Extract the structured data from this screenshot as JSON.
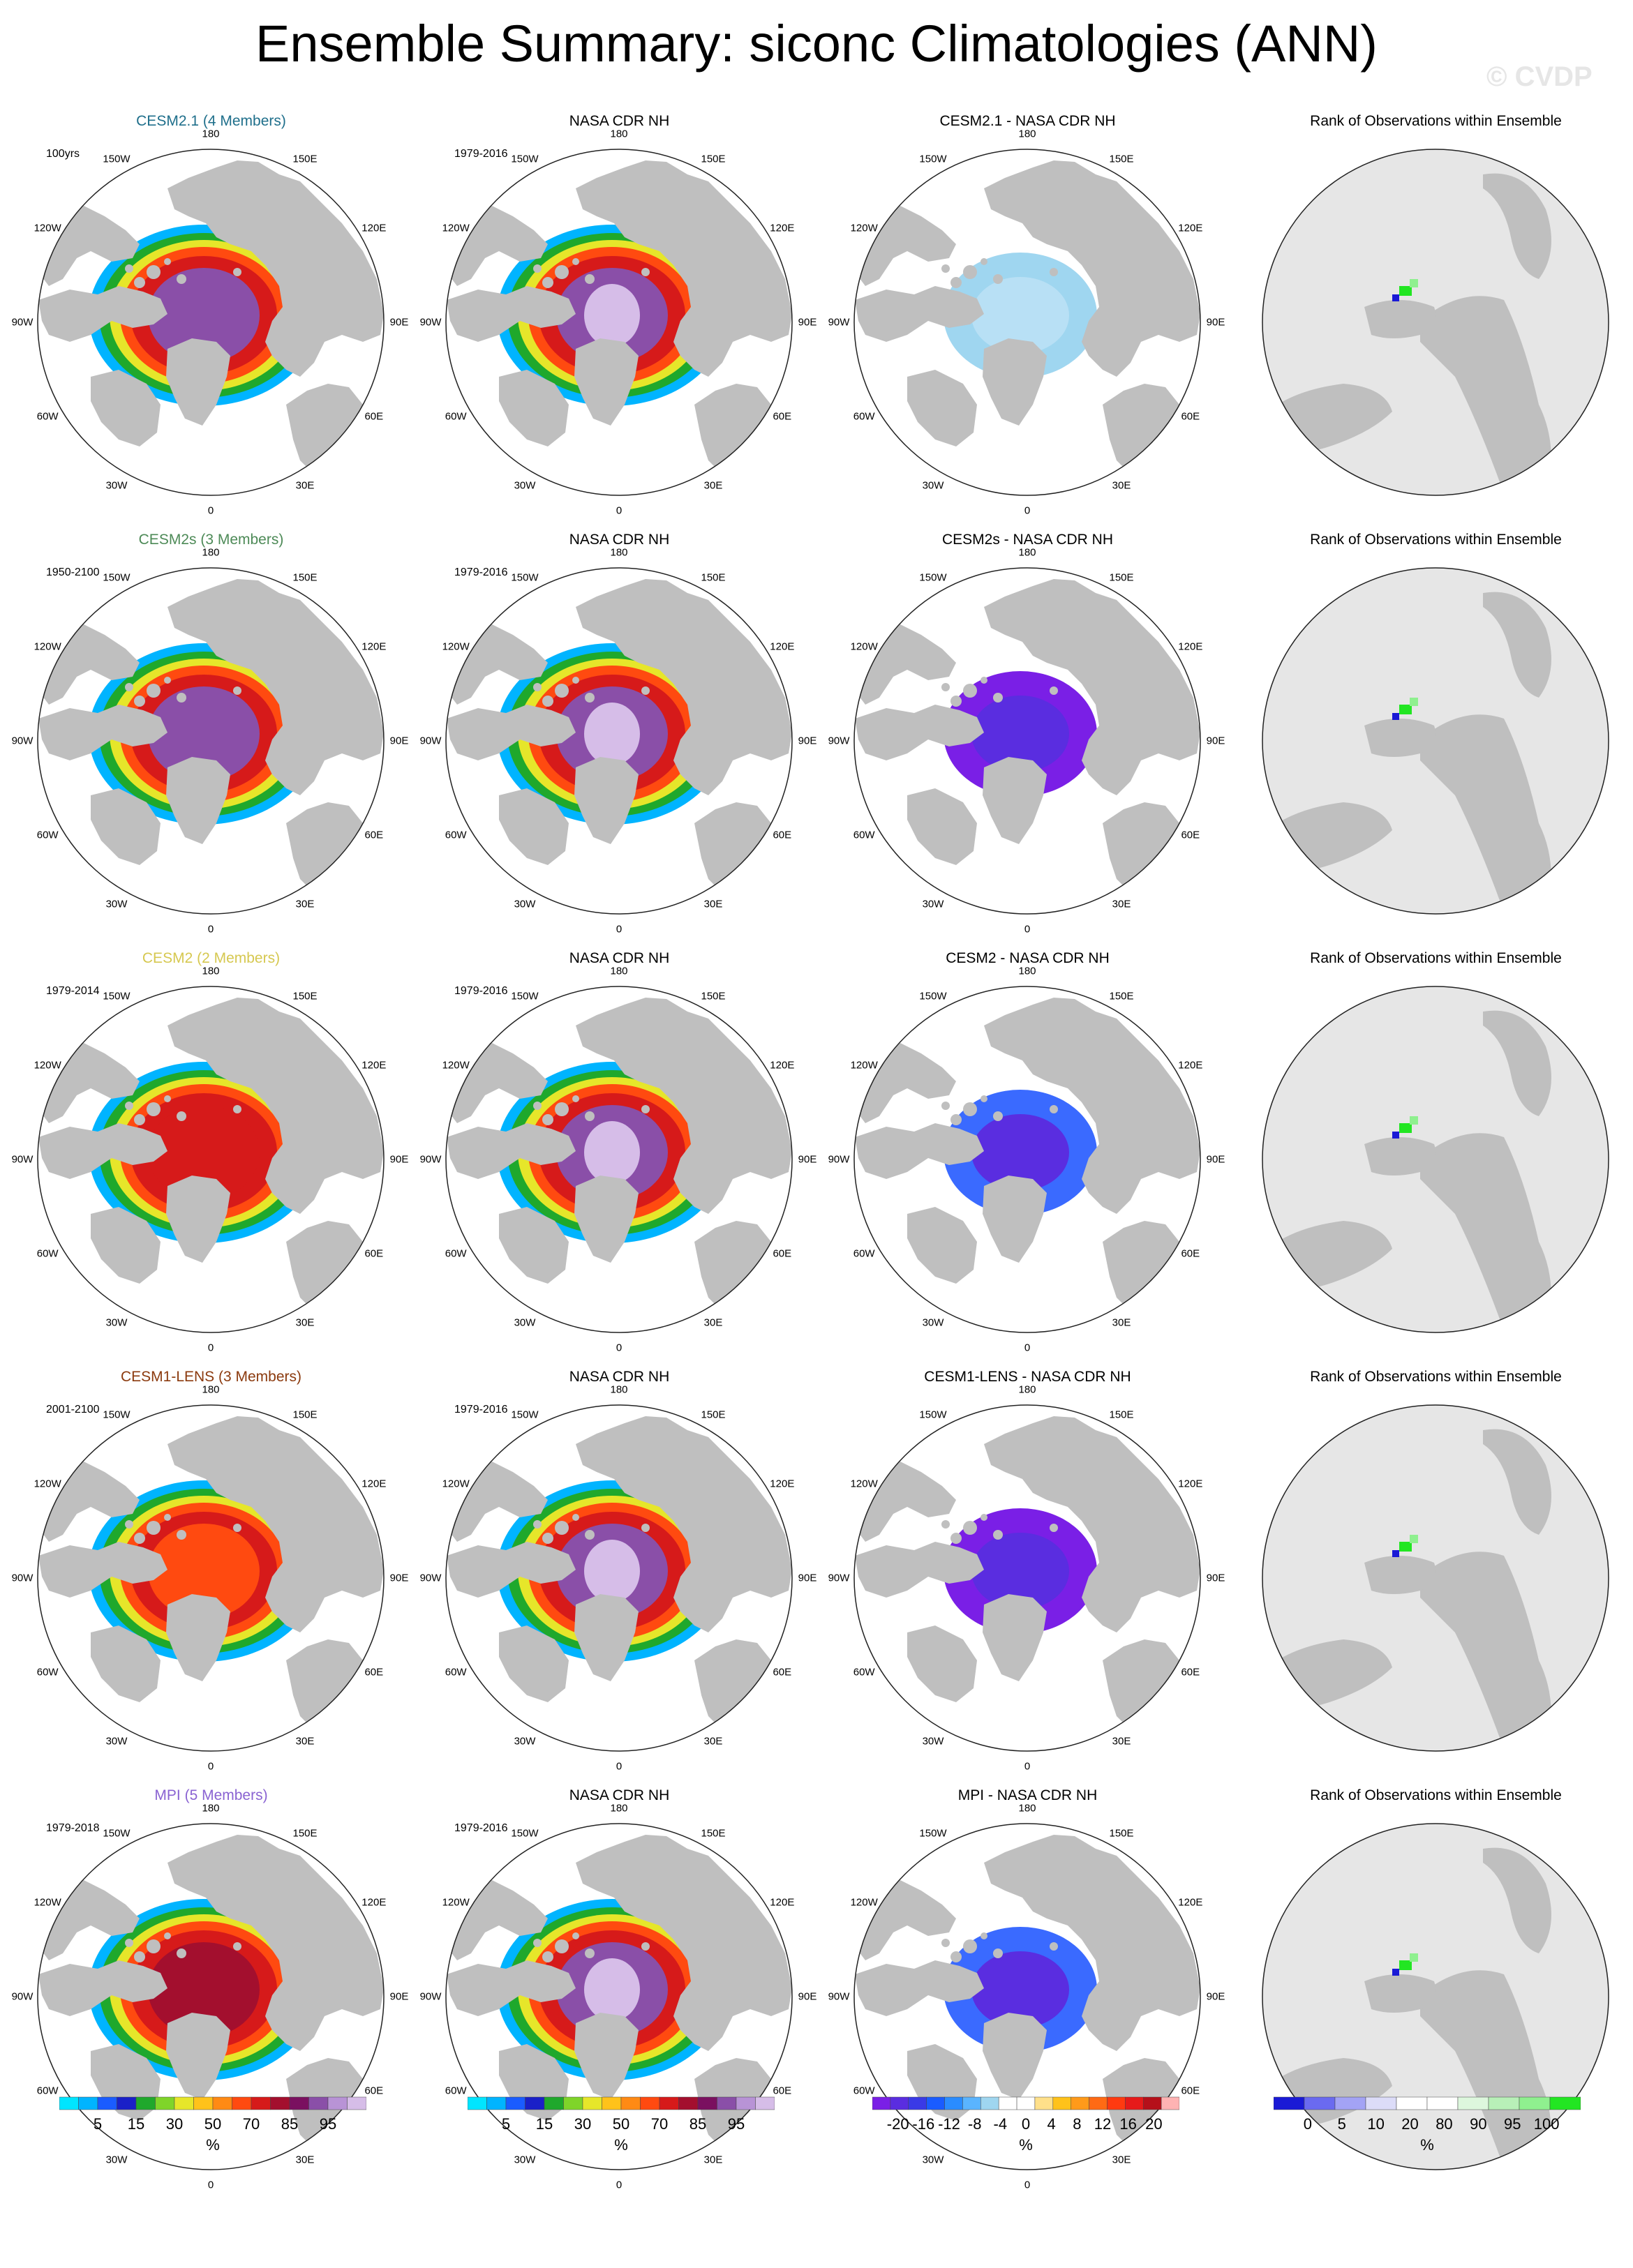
{
  "title": "Ensemble Summary: siconc Climatologies (ANN)",
  "watermark": "© CVDP",
  "lon_labels": [
    "180",
    "150E",
    "120E",
    "90E",
    "60E",
    "30E",
    "0",
    "30W",
    "60W",
    "90W",
    "120W",
    "150W"
  ],
  "colors": {
    "land": "#bfbfbf",
    "circle_edge": "#222222",
    "rank_background": "#e6e6e6"
  },
  "rows": [
    {
      "model": "CESM2.1 (4 Members)",
      "model_color": "#1f6f8b",
      "period": "100yrs",
      "obs_title": "NASA CDR NH",
      "obs_period": "1979-2016",
      "diff_title": "CESM2.1 - NASA CDR NH",
      "rank_title": "Rank of Observations within Ensemble"
    },
    {
      "model": "CESM2s (3 Members)",
      "model_color": "#4d8a57",
      "period": "1950-2100",
      "obs_title": "NASA CDR NH",
      "obs_period": "1979-2016",
      "diff_title": "CESM2s - NASA CDR NH",
      "rank_title": "Rank of Observations within Ensemble"
    },
    {
      "model": "CESM2 (2 Members)",
      "model_color": "#d6c850",
      "period": "1979-2014",
      "obs_title": "NASA CDR NH",
      "obs_period": "1979-2016",
      "diff_title": "CESM2 - NASA CDR NH",
      "rank_title": "Rank of Observations within Ensemble"
    },
    {
      "model": "CESM1-LENS (3 Members)",
      "model_color": "#8b3a0e",
      "period": "2001-2100",
      "obs_title": "NASA CDR NH",
      "obs_period": "1979-2016",
      "diff_title": "CESM1-LENS - NASA CDR NH",
      "rank_title": "Rank of Observations within Ensemble"
    },
    {
      "model": "MPI (5 Members)",
      "model_color": "#8a63d2",
      "period": "1979-2018",
      "obs_title": "NASA CDR NH",
      "obs_period": "1979-2016",
      "diff_title": "MPI - NASA CDR NH",
      "rank_title": "Rank of Observations within Ensemble"
    }
  ],
  "chart_data": {
    "type": "heatmap",
    "projection": "north-polar-stereographic",
    "variable": "siconc",
    "season": "ANN",
    "colorbars": [
      {
        "id": "conc",
        "labels": [
          "5",
          "15",
          "30",
          "50",
          "70",
          "85",
          "95"
        ],
        "unit": "%",
        "colors": [
          "#00e5ff",
          "#00b4ff",
          "#1a5cff",
          "#1a20c8",
          "#1fa82c",
          "#7fd42a",
          "#e6e62a",
          "#ffc21a",
          "#ff8a14",
          "#ff4a10",
          "#d61a1a",
          "#a30f2e",
          "#7a1060",
          "#8a4fa8",
          "#b893d6",
          "#d6bde8"
        ]
      },
      {
        "id": "conc2",
        "labels": [
          "5",
          "15",
          "30",
          "50",
          "70",
          "85",
          "95"
        ],
        "unit": "%",
        "colors": [
          "#00e5ff",
          "#00b4ff",
          "#1a5cff",
          "#1a20c8",
          "#1fa82c",
          "#7fd42a",
          "#e6e62a",
          "#ffc21a",
          "#ff8a14",
          "#ff4a10",
          "#d61a1a",
          "#a30f2e",
          "#7a1060",
          "#8a4fa8",
          "#b893d6",
          "#d6bde8"
        ]
      },
      {
        "id": "diff",
        "labels": [
          "-20",
          "-16",
          "-12",
          "-8",
          "-4",
          "0",
          "4",
          "8",
          "12",
          "16",
          "20"
        ],
        "unit": "%",
        "colors": [
          "#7a1fe6",
          "#5a2de0",
          "#3a3ae6",
          "#1a5cff",
          "#2a8cff",
          "#5ab4ff",
          "#9fd6f0",
          "#ffffff",
          "#ffffff",
          "#ffe08a",
          "#ffc21a",
          "#ff9a1a",
          "#ff6a14",
          "#ff3a10",
          "#e61a1a",
          "#b5101a",
          "#ffb3b3"
        ]
      },
      {
        "id": "rank",
        "labels": [
          "0",
          "5",
          "10",
          "20",
          "80",
          "90",
          "95",
          "100"
        ],
        "unit": "%",
        "colors": [
          "#1a1ad6",
          "#6a6af0",
          "#a3a3f5",
          "#dcdcf8",
          "#ffffff",
          "#ffffff",
          "#ddf7dd",
          "#b8f0b8",
          "#8ff08f",
          "#22e622"
        ]
      }
    ],
    "fields": {
      "model_central_ice": [
        "purple",
        "purple",
        "purple-red",
        "orange-red",
        "red"
      ],
      "diff_central": [
        "light-blue",
        "purple",
        "blue",
        "purple",
        "blue"
      ]
    }
  }
}
